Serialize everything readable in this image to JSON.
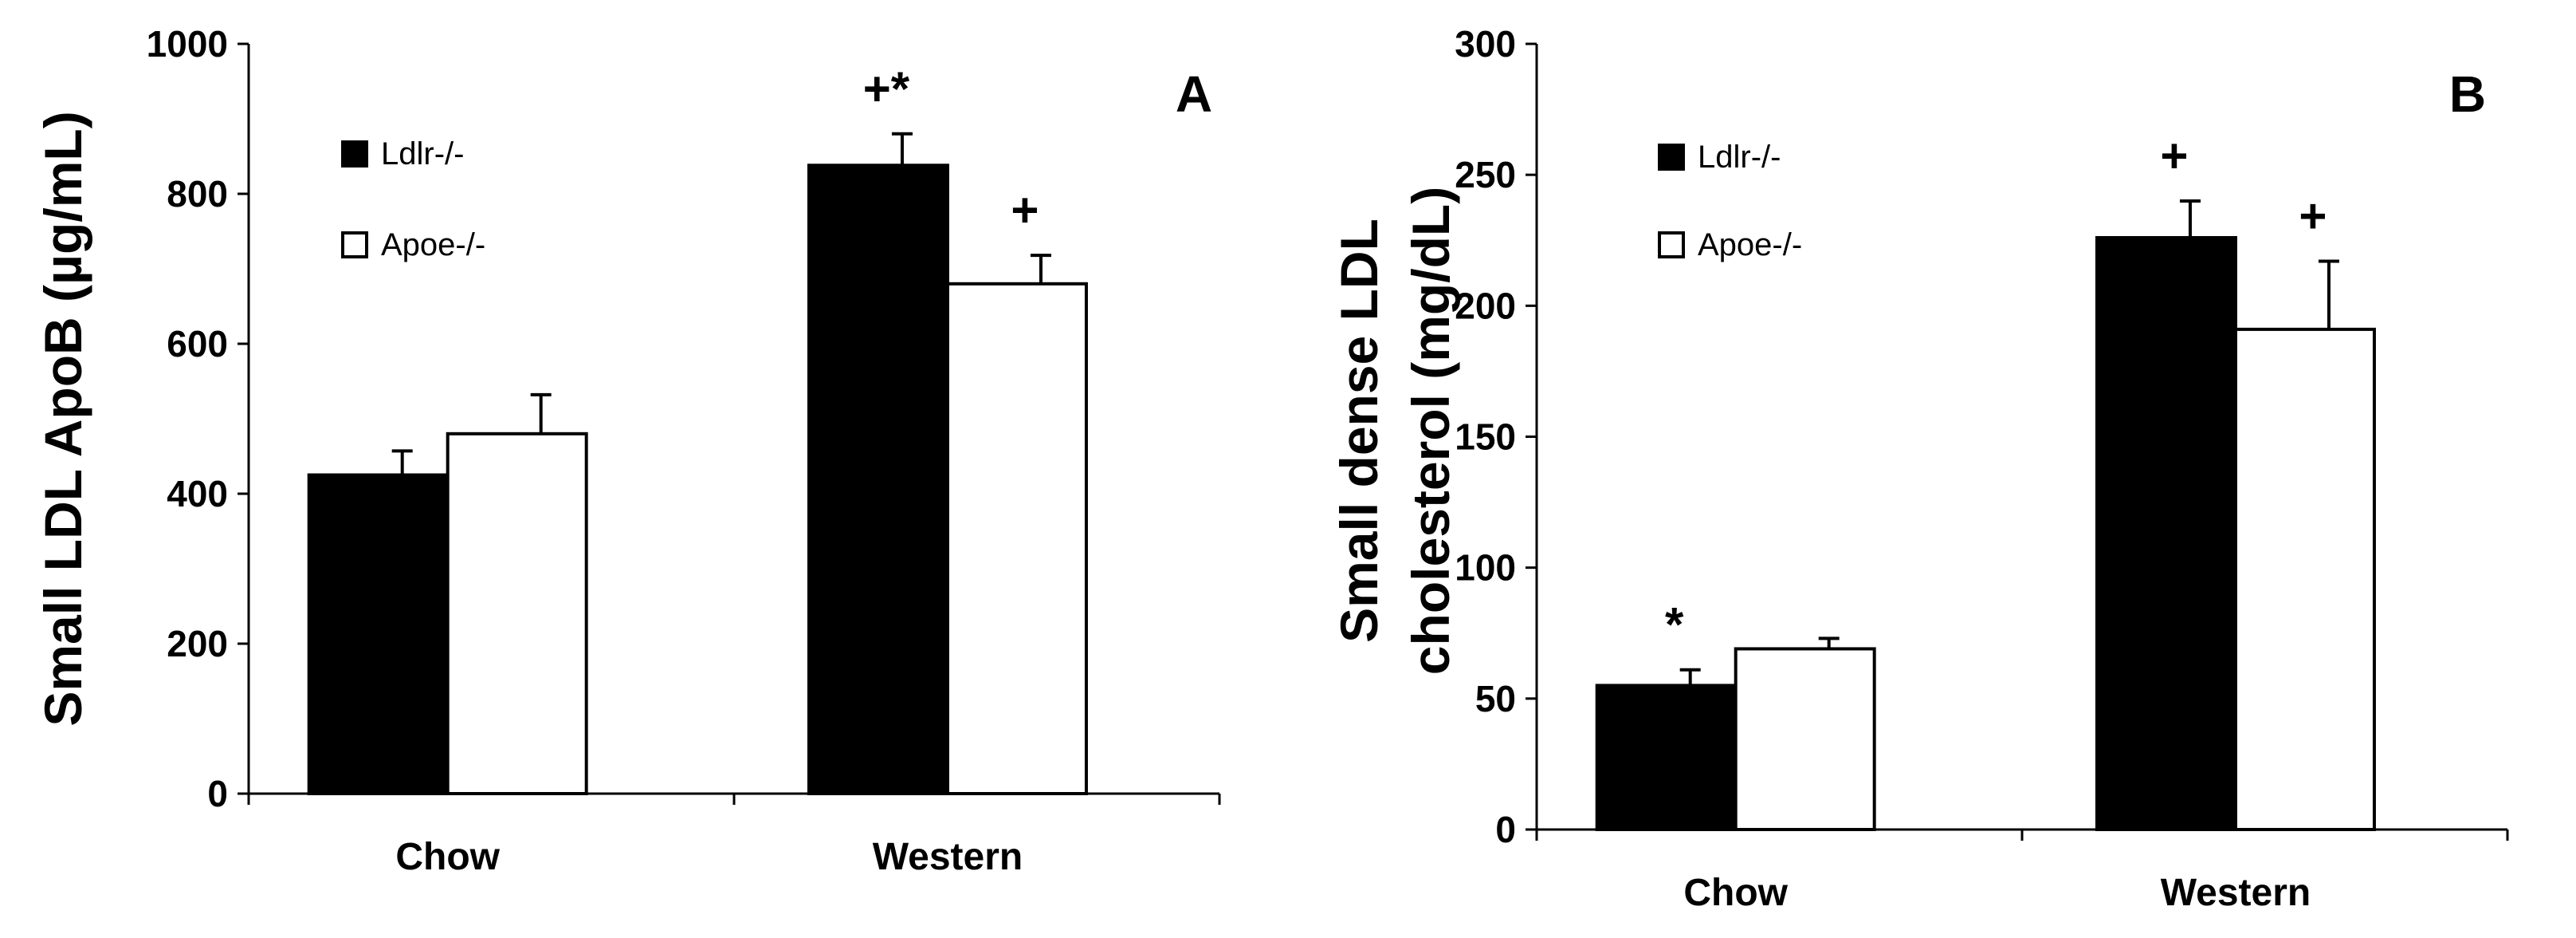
{
  "colors": {
    "ldlr": "#000000",
    "apoe": "#ffffff",
    "axis": "#000000"
  },
  "chart_data": [
    {
      "type": "bar",
      "panel": "A",
      "ylabel": "Small LDL ApoB (µg/mL)",
      "ylim": [
        0,
        1000
      ],
      "yticks": [
        0,
        200,
        400,
        600,
        800,
        1000
      ],
      "categories": [
        "Chow",
        "Western"
      ],
      "series": [
        {
          "name": "Ldlr-/-",
          "values": [
            425,
            838
          ],
          "errors": [
            32,
            42
          ],
          "color": "#000000"
        },
        {
          "name": "Apoe-/-",
          "values": [
            480,
            680
          ],
          "errors": [
            52,
            38
          ],
          "color": "#ffffff"
        }
      ],
      "annotations": [
        {
          "text": "+*",
          "series": 0,
          "category": 1
        },
        {
          "text": "+",
          "series": 1,
          "category": 1
        }
      ]
    },
    {
      "type": "bar",
      "panel": "B",
      "ylabel": [
        "Small dense LDL",
        "cholesterol (mg/dL)"
      ],
      "ylim": [
        0,
        300
      ],
      "yticks": [
        0,
        50,
        100,
        150,
        200,
        250,
        300
      ],
      "categories": [
        "Chow",
        "Western"
      ],
      "series": [
        {
          "name": "Ldlr-/-",
          "values": [
            55,
            226
          ],
          "errors": [
            6,
            14
          ],
          "color": "#000000"
        },
        {
          "name": "Apoe-/-",
          "values": [
            69,
            191
          ],
          "errors": [
            4,
            26
          ],
          "color": "#ffffff"
        }
      ],
      "annotations": [
        {
          "text": "*",
          "series": 0,
          "category": 0
        },
        {
          "text": "+",
          "series": 0,
          "category": 1
        },
        {
          "text": "+",
          "series": 1,
          "category": 1
        }
      ]
    }
  ]
}
